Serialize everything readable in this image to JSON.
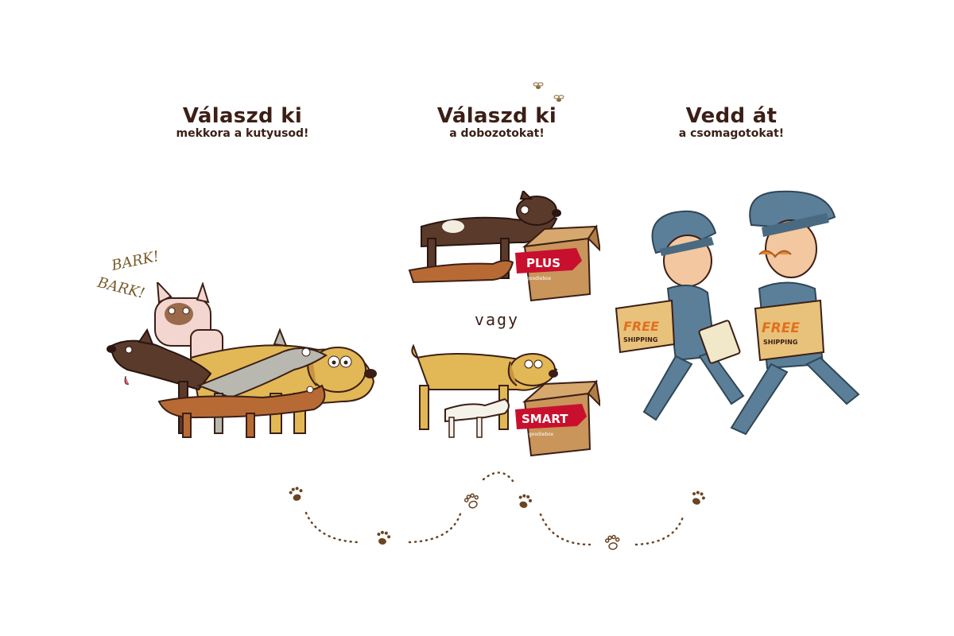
{
  "steps": [
    {
      "title": "Válaszd ki",
      "subtitle": "mekkora a kutyusod!"
    },
    {
      "title": "Válaszd ki",
      "subtitle": "a dobozotokat!"
    },
    {
      "title": "Vedd át",
      "subtitle": "a csomagotokat!"
    }
  ],
  "bark": [
    "BARK!",
    "BARK!"
  ],
  "or_label": "vagy",
  "boxes": {
    "plus": {
      "label": "PLUS",
      "brand": "goodiebox"
    },
    "smart": {
      "label": "SMART",
      "brand": "goodiebox"
    }
  },
  "parcels": {
    "free": "FREE",
    "shipping": "SHIPPING"
  },
  "colors": {
    "heading": "#3b1f16",
    "ribbon": "#c8102e",
    "box": "#c9955a",
    "paw": "#6b4423",
    "uniform": "#5b7f99"
  }
}
